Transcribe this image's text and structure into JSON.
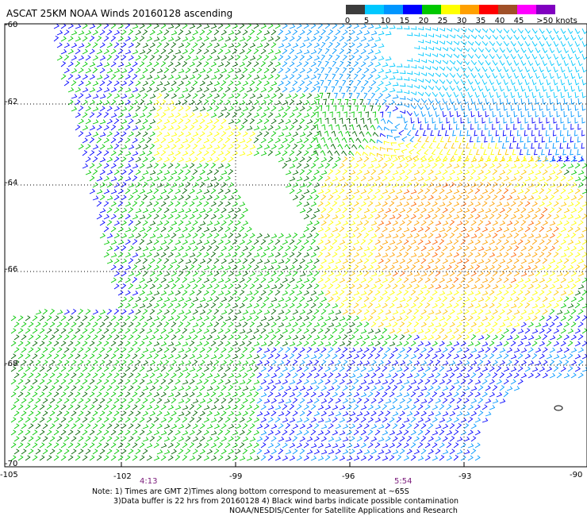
{
  "title": "ASCAT 25KM NOAA Winds 20160128 ascending",
  "legend": {
    "bins": [
      {
        "label": "0",
        "color": "#3c3c3c"
      },
      {
        "label": "5",
        "color": "#00c8ff"
      },
      {
        "label": "10",
        "color": "#0096ff"
      },
      {
        "label": "15",
        "color": "#0000ff"
      },
      {
        "label": "20",
        "color": "#00c800"
      },
      {
        "label": "25",
        "color": "#ffff00"
      },
      {
        "label": "30",
        "color": "#ffa000"
      },
      {
        "label": "35",
        "color": "#ff0000"
      },
      {
        "label": "40",
        "color": "#a05028"
      },
      {
        "label": "45",
        "color": "#ff00ff"
      },
      {
        "label": ">50 knots",
        "color": "#8000c0"
      }
    ],
    "extra_colors": [
      "#969696",
      "#ff6400",
      "#ffc800",
      "#006400",
      "#d00000"
    ]
  },
  "map": {
    "lat_labels": [
      "-60",
      "-62",
      "-64",
      "-66",
      "-68",
      "-70"
    ],
    "lon_labels": [
      "-105",
      "-102",
      "-99",
      "-96",
      "-93",
      "-90"
    ],
    "time_labels": [
      "4:13",
      "5:54"
    ]
  },
  "notes": {
    "line1": "Note: 1) Times are GMT 2)Times along bottom correspond to measurement at ~65S",
    "line2": "3)Data buffer is 22 hrs from 20160128 4) Black wind barbs indicate possible contamination",
    "line3": "NOAA/NESDIS/Center for Satellite Applications and Research"
  }
}
